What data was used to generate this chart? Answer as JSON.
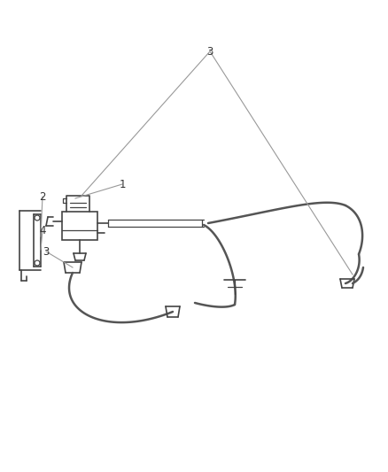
{
  "bg_color": "#ffffff",
  "line_color": "#444444",
  "label_color": "#333333",
  "thin_gray": "#999999",
  "hose_color": "#555555",
  "hose_lw": 1.8,
  "thin_lw": 0.9,
  "comp_lw": 1.2,
  "label_fontsize": 8.5,
  "figsize": [
    4.38,
    5.33
  ],
  "dpi": 100
}
